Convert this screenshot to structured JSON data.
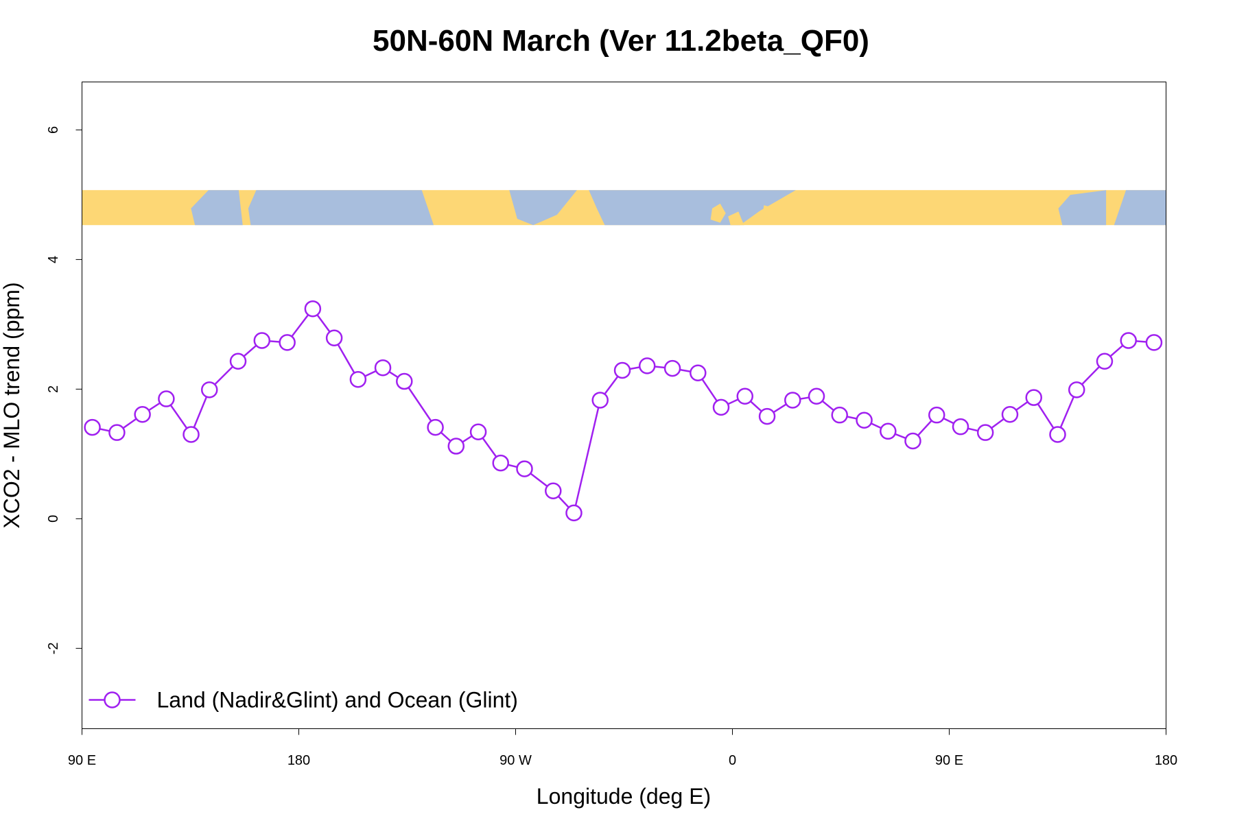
{
  "chart_data": {
    "type": "line",
    "title": "50N-60N March (Ver 11.2beta_QF0)",
    "x_label": "Longitude (deg E)",
    "y_label": "XCO2 - MLO trend (ppm)",
    "xlim": [
      90,
      540
    ],
    "ylim": [
      -3.24,
      6.74
    ],
    "xticks": [
      {
        "value": 90,
        "label": "90 E"
      },
      180,
      {
        "value": 270,
        "label": "90 W"
      },
      {
        "value": 360,
        "label": "0"
      },
      {
        "value": 450,
        "label": "90 E"
      },
      {
        "value": 540,
        "label": "180"
      }
    ],
    "yticks": [
      -2,
      0,
      2,
      4,
      6
    ],
    "x": [
      94.3,
      104.5,
      115.1,
      125.0,
      135.3,
      142.9,
      154.8,
      164.7,
      175.2,
      185.8,
      194.7,
      204.6,
      214.9,
      223.8,
      236.7,
      245.3,
      254.5,
      263.8,
      273.7,
      285.6,
      294.2,
      305.1,
      314.3,
      324.6,
      335.1,
      345.7,
      355.3,
      365.2,
      374.4,
      385.0,
      394.9,
      404.5,
      414.7,
      424.6,
      434.9,
      444.8,
      454.7,
      465.0,
      475.2,
      485.1,
      495.0,
      502.9,
      514.5,
      524.4,
      535.0
    ],
    "series": [
      {
        "name": "Land (Nadir&Glint) and Ocean (Glint)",
        "color": "#a020f0",
        "values": [
          1.41,
          1.33,
          1.61,
          1.85,
          1.3,
          1.99,
          2.43,
          2.75,
          2.72,
          3.24,
          2.79,
          2.15,
          2.33,
          2.12,
          1.41,
          1.12,
          1.34,
          0.86,
          0.77,
          0.43,
          0.09,
          1.83,
          2.29,
          2.36,
          2.32,
          2.25,
          1.72,
          1.89,
          1.58,
          1.83,
          1.89,
          1.6,
          1.52,
          1.35,
          1.2,
          1.6,
          1.42,
          1.33,
          1.61,
          1.87,
          1.3,
          1.99,
          2.43,
          2.75,
          2.72
        ]
      }
    ],
    "legend": "bottomleft"
  }
}
